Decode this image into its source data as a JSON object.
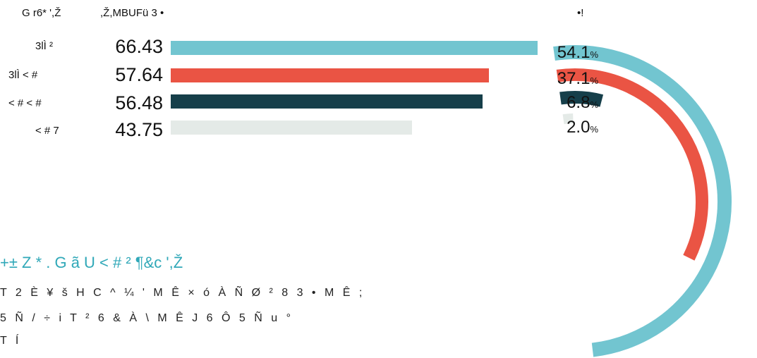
{
  "header": {
    "col1": "G r6* ',Ž",
    "col2": ",Ž,MBUFü 3 •",
    "col3": "•!"
  },
  "colors": {
    "teal": "#72c5d0",
    "red": "#ea5444",
    "navy": "#163f4a",
    "grey": "#e4eae7",
    "title": "#30a8b8"
  },
  "chart_data": [
    {
      "type": "bar",
      "orientation": "horizontal",
      "categories": [
        "3lÌ  ²",
        "3lÌ     < #",
        "< #      < #",
        "< #   7"
      ],
      "values": [
        66.43,
        57.64,
        56.48,
        43.75
      ],
      "value_labels": [
        "66.43",
        "57.64",
        "56.48",
        "43.75"
      ],
      "xlim": [
        0,
        66.43
      ],
      "grid": false
    },
    {
      "type": "pie",
      "style": "concentric-arcs",
      "values": [
        54.1,
        37.1,
        6.8,
        2.0
      ],
      "value_labels": [
        "54.1",
        "37.1",
        "6.8",
        "2.0"
      ],
      "unit": "%"
    }
  ],
  "text": {
    "title": "+± Z * . G ã     U     < # ² ¶&c ',Ž",
    "lines": [
      "T 2   È ¥ š H C ^ ¼ '   M Ê   × ó À Ñ Ø ² 8 3 • M Ê   ;",
      "5 Ñ / ÷ i   T ² 6 & À \\        M Ê   J 6    Ô 5 Ñ u °",
      "T Í"
    ]
  }
}
